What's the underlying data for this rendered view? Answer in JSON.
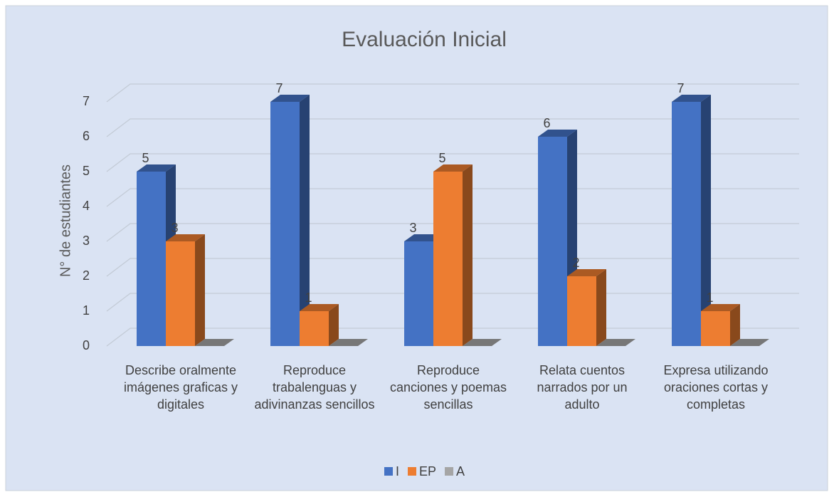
{
  "chart_data": {
    "type": "bar3d",
    "title": "Evaluación Inicial",
    "y_label": "N° de estudiantes",
    "categories": [
      "Describe oralmente imágenes graficas y digitales",
      "Reproduce trabalenguas y adivinanzas sencillos",
      "Reproduce canciones y poemas sencillas",
      "Relata cuentos narrados por un adulto",
      "Expresa utilizando oraciones cortas y completas"
    ],
    "series": [
      {
        "name": "I",
        "color": "#4472c4",
        "values": [
          5,
          7,
          3,
          6,
          7
        ],
        "show_labels": true
      },
      {
        "name": "EP",
        "color": "#ed7d31",
        "values": [
          3,
          1,
          5,
          2,
          1
        ],
        "show_labels": true
      },
      {
        "name": "A",
        "color": "#a5a5a5",
        "values": [
          0,
          0,
          0,
          0,
          0
        ],
        "show_labels": false
      }
    ],
    "ylim": [
      0,
      7
    ],
    "yticks": [
      0,
      1,
      2,
      3,
      4,
      5,
      6,
      7
    ],
    "grid": true,
    "legend": "bottom"
  }
}
